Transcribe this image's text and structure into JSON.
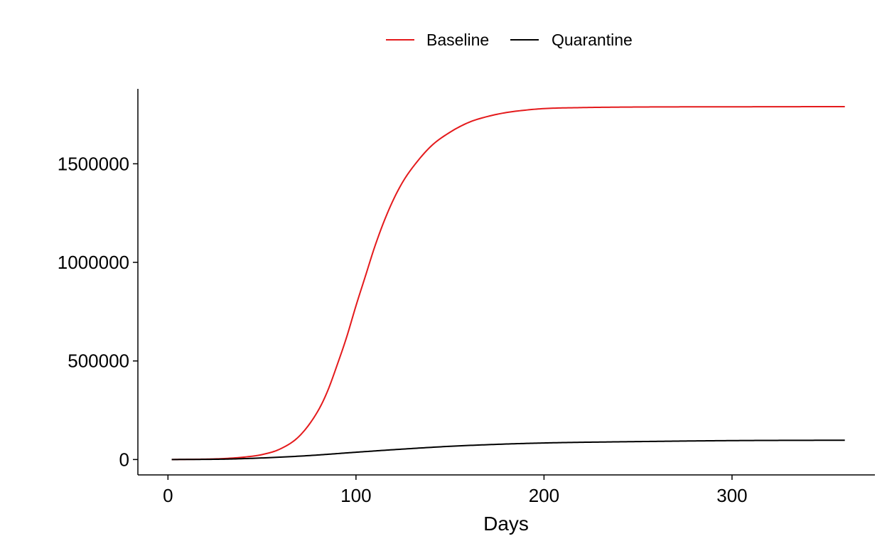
{
  "chart_data": {
    "type": "line",
    "title": "",
    "xlabel": "Days",
    "ylabel": "",
    "xlim": [
      -16,
      376
    ],
    "ylim": [
      -78000,
      1880000
    ],
    "xticks": [
      0,
      100,
      200,
      300
    ],
    "xtick_labels": [
      "0",
      "100",
      "200",
      "300"
    ],
    "yticks": [
      0,
      500000,
      1000000,
      1500000
    ],
    "ytick_labels": [
      "0",
      "500000",
      "1000000",
      "1500000"
    ],
    "grid": false,
    "legend_position": "top",
    "series": [
      {
        "name": "Baseline",
        "color": "#e41a1c",
        "x": [
          2,
          20,
          30,
          40,
          50,
          60,
          70,
          80,
          85,
          90,
          95,
          100,
          105,
          110,
          115,
          120,
          125,
          130,
          140,
          150,
          160,
          170,
          180,
          190,
          200,
          220,
          250,
          300,
          360
        ],
        "y": [
          0,
          2000,
          5000,
          12000,
          25000,
          55000,
          120000,
          250000,
          350000,
          480000,
          620000,
          780000,
          930000,
          1080000,
          1210000,
          1320000,
          1410000,
          1480000,
          1590000,
          1660000,
          1710000,
          1740000,
          1760000,
          1772000,
          1780000,
          1785000,
          1788000,
          1789000,
          1790000
        ]
      },
      {
        "name": "Quarantine",
        "color": "#000000",
        "x": [
          2,
          30,
          50,
          75,
          100,
          125,
          150,
          175,
          200,
          250,
          300,
          360
        ],
        "y": [
          0,
          2000,
          8000,
          20000,
          37000,
          53000,
          67000,
          77000,
          84000,
          91000,
          96000,
          98000
        ]
      }
    ]
  }
}
